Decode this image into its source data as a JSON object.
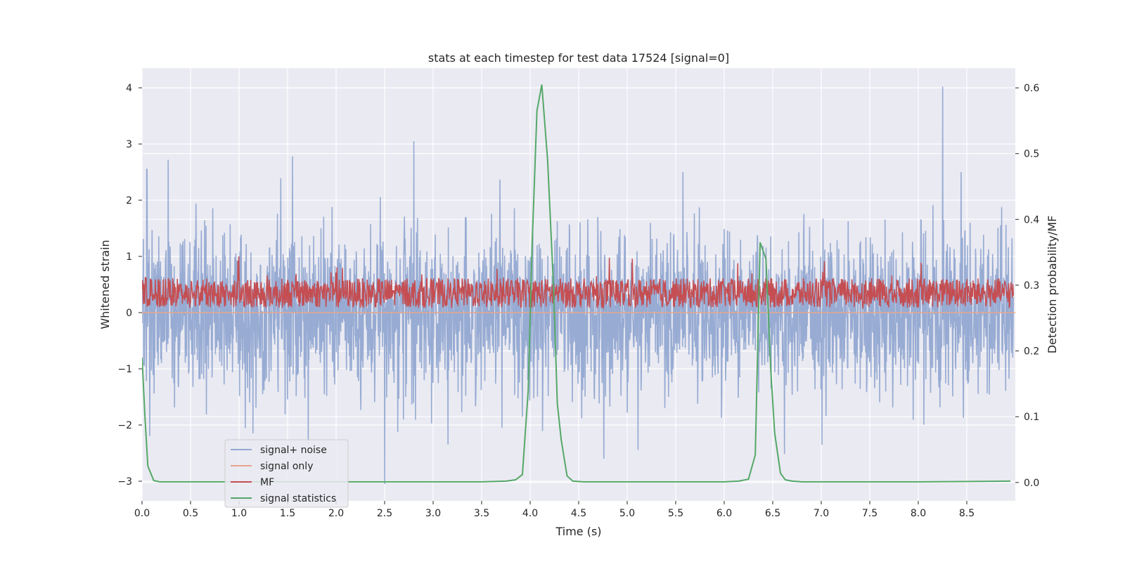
{
  "chart_data": {
    "type": "line",
    "title": "stats at each timestep for test data 17524 [signal=0]",
    "xlabel": "Time (s)",
    "ylabel_left": "Whitened strain",
    "ylabel_right": "Detection probability/MF",
    "xlim": [
      0.0,
      9.0
    ],
    "ylim_left": [
      -3.35,
      4.35
    ],
    "ylim_right": [
      -0.028,
      0.63
    ],
    "xticks": [
      0.0,
      0.5,
      1.0,
      1.5,
      2.0,
      2.5,
      3.0,
      3.5,
      4.0,
      4.5,
      5.0,
      5.5,
      6.0,
      6.5,
      7.0,
      7.5,
      8.0,
      8.5
    ],
    "xtick_labels": [
      "0.0",
      "0.5",
      "1.0",
      "1.5",
      "2.0",
      "2.5",
      "3.0",
      "3.5",
      "4.0",
      "4.5",
      "5.0",
      "5.5",
      "6.0",
      "6.5",
      "7.0",
      "7.5",
      "8.0",
      "8.5"
    ],
    "yticks_left": [
      4,
      3,
      2,
      1,
      0,
      -1,
      -2,
      -3
    ],
    "ytick_labels_left": [
      "4",
      "3",
      "2",
      "1",
      "0",
      "−1",
      "−2",
      "−3"
    ],
    "yticks_right": [
      0.6,
      0.5,
      0.4,
      0.3,
      0.2,
      0.1,
      0.0
    ],
    "ytick_labels_right": [
      "0.6",
      "0.5",
      "0.4",
      "0.3",
      "0.2",
      "0.1",
      "0.0"
    ],
    "grid": true,
    "legend_position": "lower-left",
    "series": [
      {
        "name": "signal+ noise",
        "axis": "left",
        "color": "#92a8d1",
        "style": "dense noise band",
        "approx_range": [
          -3.05,
          4.02
        ],
        "notable_peaks": [
          [
            0.05,
            2.55
          ],
          [
            0.27,
            2.72
          ],
          [
            1.55,
            2.78
          ],
          [
            2.8,
            3.05
          ],
          [
            2.5,
            -3.05
          ],
          [
            8.25,
            4.02
          ]
        ]
      },
      {
        "name": "signal only",
        "axis": "left",
        "color": "#e8a58b",
        "x": [
          0.0,
          9.0
        ],
        "y": [
          0.0,
          0.0
        ]
      },
      {
        "name": "MF",
        "axis": "right",
        "color": "#c44e52",
        "style": "dense noise band",
        "approx_range": [
          0.27,
          0.35
        ]
      },
      {
        "name": "signal statistics",
        "axis": "right",
        "color": "#55a868",
        "x": [
          0.0,
          0.03,
          0.06,
          0.12,
          0.18,
          0.3,
          0.5,
          1.0,
          2.0,
          3.0,
          3.5,
          3.75,
          3.85,
          3.92,
          3.98,
          4.02,
          4.07,
          4.12,
          4.18,
          4.24,
          4.28,
          4.32,
          4.38,
          4.44,
          4.55,
          4.8,
          5.5,
          6.0,
          6.15,
          6.25,
          6.32,
          6.37,
          6.43,
          6.48,
          6.52,
          6.58,
          6.63,
          6.7,
          6.8,
          7.0,
          8.0,
          8.95
        ],
        "y": [
          0.19,
          0.1,
          0.025,
          0.003,
          0.001,
          0.001,
          0.001,
          0.001,
          0.001,
          0.001,
          0.001,
          0.002,
          0.004,
          0.012,
          0.14,
          0.36,
          0.565,
          0.605,
          0.49,
          0.3,
          0.12,
          0.065,
          0.01,
          0.002,
          0.001,
          0.001,
          0.001,
          0.001,
          0.002,
          0.005,
          0.042,
          0.365,
          0.34,
          0.17,
          0.075,
          0.014,
          0.004,
          0.002,
          0.001,
          0.001,
          0.001,
          0.002
        ]
      }
    ]
  }
}
